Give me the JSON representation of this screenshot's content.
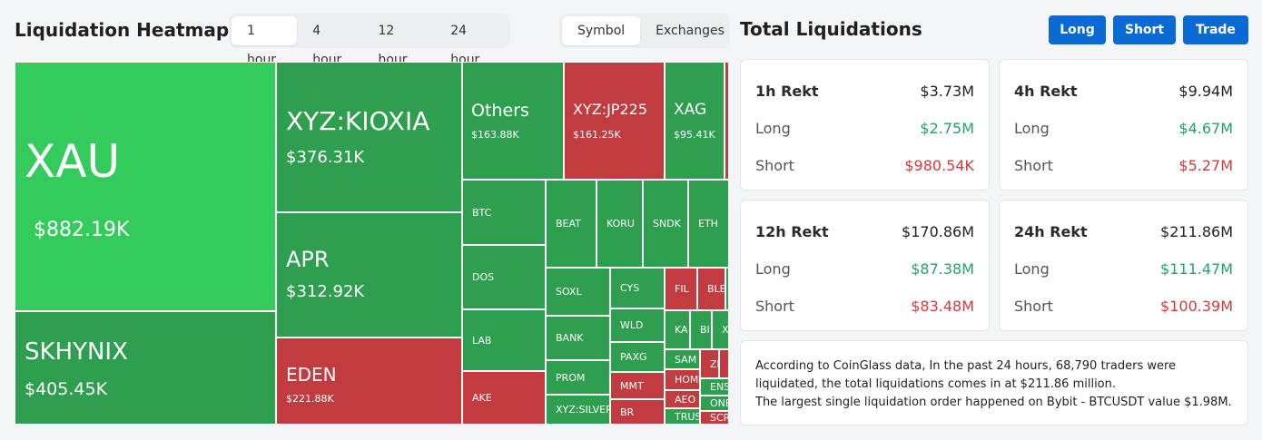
{
  "header": {
    "heatmap_title": "Liquidation Heatmap",
    "time_tabs": [
      "1 hour",
      "4 hour",
      "12 hour",
      "24 hour"
    ],
    "active_time_tab": "1 hour",
    "view_tabs": [
      "Symbol",
      "Exchanges"
    ],
    "active_view_tab": "Symbol",
    "total_title": "Total Liquidations",
    "buttons": {
      "long": "Long",
      "short": "Short",
      "trade": "Trade"
    }
  },
  "colors": {
    "green_bright": "#33cc5c",
    "green": "#2e9e4f",
    "red": "#c23b3f",
    "accent": "#0a6ad3"
  },
  "heatmap": {
    "tiles": [
      {
        "symbol": "XAU",
        "value": "$882.19K",
        "color": "green_bright"
      },
      {
        "symbol": "SKHYNIX",
        "value": "$405.45K",
        "color": "green"
      },
      {
        "symbol": "XYZ:KIOXIA",
        "value": "$376.31K",
        "color": "green"
      },
      {
        "symbol": "APR",
        "value": "$312.92K",
        "color": "green"
      },
      {
        "symbol": "EDEN",
        "value": "$221.88K",
        "color": "red"
      },
      {
        "symbol": "Others",
        "value": "$163.88K",
        "color": "green"
      },
      {
        "symbol": "XYZ:JP225",
        "value": "$161.25K",
        "color": "red"
      },
      {
        "symbol": "XAG",
        "value": "$95.41K",
        "color": "green"
      },
      {
        "symbol": "",
        "value": "",
        "color": "red"
      },
      {
        "symbol": "BTC",
        "value": "",
        "color": "green"
      },
      {
        "symbol": "DOS",
        "value": "",
        "color": "green"
      },
      {
        "symbol": "LAB",
        "value": "",
        "color": "green"
      },
      {
        "symbol": "AKE",
        "value": "",
        "color": "red"
      },
      {
        "symbol": "BEAT",
        "value": "",
        "color": "green"
      },
      {
        "symbol": "KORU",
        "value": "",
        "color": "green"
      },
      {
        "symbol": "SNDK",
        "value": "",
        "color": "green"
      },
      {
        "symbol": "ETH",
        "value": "",
        "color": "green"
      },
      {
        "symbol": "SOXL",
        "value": "",
        "color": "green"
      },
      {
        "symbol": "BANK",
        "value": "",
        "color": "green"
      },
      {
        "symbol": "PROM",
        "value": "",
        "color": "green"
      },
      {
        "symbol": "XYZ:SILVER",
        "value": "",
        "color": "green"
      },
      {
        "symbol": "CYS",
        "value": "",
        "color": "green"
      },
      {
        "symbol": "WLD",
        "value": "",
        "color": "green"
      },
      {
        "symbol": "PAXG",
        "value": "",
        "color": "green"
      },
      {
        "symbol": "MMT",
        "value": "",
        "color": "red"
      },
      {
        "symbol": "BR",
        "value": "",
        "color": "red"
      },
      {
        "symbol": "FIL",
        "value": "",
        "color": "red"
      },
      {
        "symbol": "BLE",
        "value": "",
        "color": "red"
      },
      {
        "symbol": "",
        "value": "",
        "color": "green"
      },
      {
        "symbol": "KA",
        "value": "",
        "color": "green"
      },
      {
        "symbol": "BI",
        "value": "",
        "color": "green"
      },
      {
        "symbol": "X",
        "value": "",
        "color": "green"
      },
      {
        "symbol": "SAM",
        "value": "",
        "color": "green"
      },
      {
        "symbol": "HOM",
        "value": "",
        "color": "red"
      },
      {
        "symbol": "AEO",
        "value": "",
        "color": "red"
      },
      {
        "symbol": "TRUS",
        "value": "",
        "color": "green"
      },
      {
        "symbol": "ZE",
        "value": "",
        "color": "red"
      },
      {
        "symbol": "",
        "value": "",
        "color": "red"
      },
      {
        "symbol": "ENS",
        "value": "",
        "color": "green"
      },
      {
        "symbol": "ONE",
        "value": "",
        "color": "green"
      },
      {
        "symbol": "SCR",
        "value": "",
        "color": "red"
      }
    ]
  },
  "rekt_cards": [
    {
      "title": "1h Rekt",
      "total": "$3.73M",
      "long_label": "Long",
      "long": "$2.75M",
      "short_label": "Short",
      "short": "$980.54K"
    },
    {
      "title": "4h Rekt",
      "total": "$9.94M",
      "long_label": "Long",
      "long": "$4.67M",
      "short_label": "Short",
      "short": "$5.27M"
    },
    {
      "title": "12h Rekt",
      "total": "$170.86M",
      "long_label": "Long",
      "long": "$87.38M",
      "short_label": "Short",
      "short": "$83.48M"
    },
    {
      "title": "24h Rekt",
      "total": "$211.86M",
      "long_label": "Long",
      "long": "$111.47M",
      "short_label": "Short",
      "short": "$100.39M"
    }
  ],
  "summary": {
    "line1": "According to CoinGlass data, In the past 24 hours, 68,790 traders were liquidated, the total liquidations comes in at $211.86 million.",
    "line2": "The largest single liquidation order happened on Bybit - BTCUSDT value $1.98M."
  }
}
